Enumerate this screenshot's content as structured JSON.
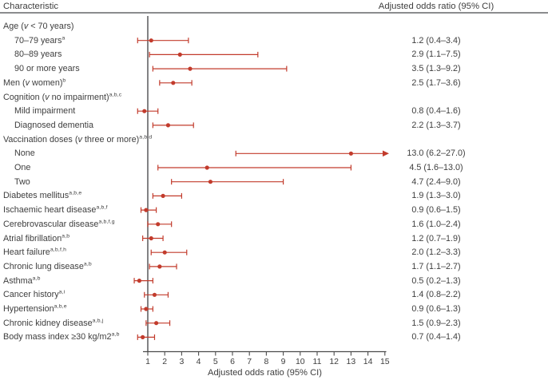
{
  "header": {
    "left": "Characteristic",
    "right": "Adjusted odds ratio (95% CI)"
  },
  "chart_data": {
    "type": "scatter",
    "subtype": "forest_plot",
    "xlabel": "Adjusted odds ratio (95% CI)",
    "x_axis": {
      "scale": "linear",
      "range": [
        1,
        15
      ],
      "ticks": [
        1,
        2,
        3,
        4,
        5,
        6,
        7,
        8,
        9,
        10,
        11,
        12,
        13,
        14,
        15
      ],
      "reference_line_x": 1
    },
    "colors": {
      "marker": "#c23b2c",
      "axis": "#4c4c4c",
      "reference_line": "#59595b",
      "header_rule": "#8b8c8e",
      "text": "#3e3e3e"
    },
    "rows": [
      {
        "label": [
          {
            "t": "Age (",
            "it": false
          },
          {
            "t": "v",
            "it": true
          },
          {
            "t": " < 70 years)",
            "it": false
          }
        ],
        "sup": "",
        "indent": 0,
        "or": null,
        "ci": null,
        "value_text": "",
        "arrow": false
      },
      {
        "label": [
          {
            "t": "70–79 years",
            "it": false
          }
        ],
        "sup": "a",
        "indent": 1,
        "or": 1.2,
        "ci": [
          0.4,
          3.4
        ],
        "value_text": "1.2 (0.4–3.4)",
        "arrow": false
      },
      {
        "label": [
          {
            "t": "80–89 years",
            "it": false
          }
        ],
        "sup": "",
        "indent": 1,
        "or": 2.9,
        "ci": [
          1.1,
          7.5
        ],
        "value_text": "2.9 (1.1–7.5)",
        "arrow": false
      },
      {
        "label": [
          {
            "t": "90 or more years",
            "it": false
          }
        ],
        "sup": "",
        "indent": 1,
        "or": 3.5,
        "ci": [
          1.3,
          9.2
        ],
        "value_text": "3.5 (1.3–9.2)",
        "arrow": false
      },
      {
        "label": [
          {
            "t": "Men (",
            "it": false
          },
          {
            "t": "v",
            "it": true
          },
          {
            "t": " women)",
            "it": false
          }
        ],
        "sup": "b",
        "indent": 0,
        "or": 2.5,
        "ci": [
          1.7,
          3.6
        ],
        "value_text": "2.5 (1.7–3.6)",
        "arrow": false
      },
      {
        "label": [
          {
            "t": "Cognition (",
            "it": false
          },
          {
            "t": "v",
            "it": true
          },
          {
            "t": " no impairment)",
            "it": false
          }
        ],
        "sup": "a,b,c",
        "indent": 0,
        "or": null,
        "ci": null,
        "value_text": "",
        "arrow": false
      },
      {
        "label": [
          {
            "t": "Mild impairment",
            "it": false
          }
        ],
        "sup": "",
        "indent": 1,
        "or": 0.8,
        "ci": [
          0.4,
          1.6
        ],
        "value_text": "0.8 (0.4–1.6)",
        "arrow": false
      },
      {
        "label": [
          {
            "t": "Diagnosed dementia",
            "it": false
          }
        ],
        "sup": "",
        "indent": 1,
        "or": 2.2,
        "ci": [
          1.3,
          3.7
        ],
        "value_text": "2.2 (1.3–3.7)",
        "arrow": false
      },
      {
        "label": [
          {
            "t": "Vaccination doses (",
            "it": false
          },
          {
            "t": "v",
            "it": true
          },
          {
            "t": " three or more)",
            "it": false
          }
        ],
        "sup": "a,b,d",
        "indent": 0,
        "or": null,
        "ci": null,
        "value_text": "",
        "arrow": false
      },
      {
        "label": [
          {
            "t": "None",
            "it": false
          }
        ],
        "sup": "",
        "indent": 1,
        "or": 13.0,
        "ci": [
          6.2,
          27.0
        ],
        "value_text": "13.0 (6.2–27.0)",
        "arrow": true
      },
      {
        "label": [
          {
            "t": "One",
            "it": false
          }
        ],
        "sup": "",
        "indent": 1,
        "or": 4.5,
        "ci": [
          1.6,
          13.0
        ],
        "value_text": "4.5 (1.6–13.0)",
        "arrow": false
      },
      {
        "label": [
          {
            "t": "Two",
            "it": false
          }
        ],
        "sup": "",
        "indent": 1,
        "or": 4.7,
        "ci": [
          2.4,
          9.0
        ],
        "value_text": "4.7 (2.4–9.0)",
        "arrow": false
      },
      {
        "label": [
          {
            "t": "Diabetes mellitus",
            "it": false
          }
        ],
        "sup": "a,b,e",
        "indent": 0,
        "or": 1.9,
        "ci": [
          1.3,
          3.0
        ],
        "value_text": "1.9 (1.3–3.0)",
        "arrow": false
      },
      {
        "label": [
          {
            "t": "Ischaemic heart disease",
            "it": false
          }
        ],
        "sup": "a,b,f",
        "indent": 0,
        "or": 0.9,
        "ci": [
          0.6,
          1.5
        ],
        "value_text": "0.9 (0.6–1.5)",
        "arrow": false
      },
      {
        "label": [
          {
            "t": "Cerebrovascular disease",
            "it": false
          }
        ],
        "sup": "a,b,f,g",
        "indent": 0,
        "or": 1.6,
        "ci": [
          1.0,
          2.4
        ],
        "value_text": "1.6 (1.0–2.4)",
        "arrow": false
      },
      {
        "label": [
          {
            "t": "Atrial fibrillation",
            "it": false
          }
        ],
        "sup": "a,b",
        "indent": 0,
        "or": 1.2,
        "ci": [
          0.7,
          1.9
        ],
        "value_text": "1.2 (0.7–1.9)",
        "arrow": false
      },
      {
        "label": [
          {
            "t": "Heart failure",
            "it": false
          }
        ],
        "sup": "a,b,f,h",
        "indent": 0,
        "or": 2.0,
        "ci": [
          1.2,
          3.3
        ],
        "value_text": "2.0 (1.2–3.3)",
        "arrow": false
      },
      {
        "label": [
          {
            "t": "Chronic lung disease",
            "it": false
          }
        ],
        "sup": "a,b",
        "indent": 0,
        "or": 1.7,
        "ci": [
          1.1,
          2.7
        ],
        "value_text": "1.7 (1.1–2.7)",
        "arrow": false
      },
      {
        "label": [
          {
            "t": "Asthma",
            "it": false
          }
        ],
        "sup": "a,b",
        "indent": 0,
        "or": 0.5,
        "ci": [
          0.2,
          1.3
        ],
        "value_text": "0.5 (0.2–1.3)",
        "arrow": false
      },
      {
        "label": [
          {
            "t": "Cancer history",
            "it": false
          }
        ],
        "sup": "a,i",
        "indent": 0,
        "or": 1.4,
        "ci": [
          0.8,
          2.2
        ],
        "value_text": "1.4 (0.8–2.2)",
        "arrow": false
      },
      {
        "label": [
          {
            "t": "Hypertension",
            "it": false
          }
        ],
        "sup": "a,b,e",
        "indent": 0,
        "or": 0.9,
        "ci": [
          0.6,
          1.3
        ],
        "value_text": "0.9 (0.6–1.3)",
        "arrow": false
      },
      {
        "label": [
          {
            "t": "Chronic kidney disease",
            "it": false
          }
        ],
        "sup": "a,b,j",
        "indent": 0,
        "or": 1.5,
        "ci": [
          0.9,
          2.3
        ],
        "value_text": "1.5 (0.9–2.3)",
        "arrow": false
      },
      {
        "label": [
          {
            "t": "Body mass index ≥30 kg/m2",
            "it": false
          }
        ],
        "sup": "a,b",
        "indent": 0,
        "or": 0.7,
        "ci": [
          0.4,
          1.4
        ],
        "value_text": "0.7 (0.4–1.4)",
        "arrow": false
      }
    ]
  }
}
